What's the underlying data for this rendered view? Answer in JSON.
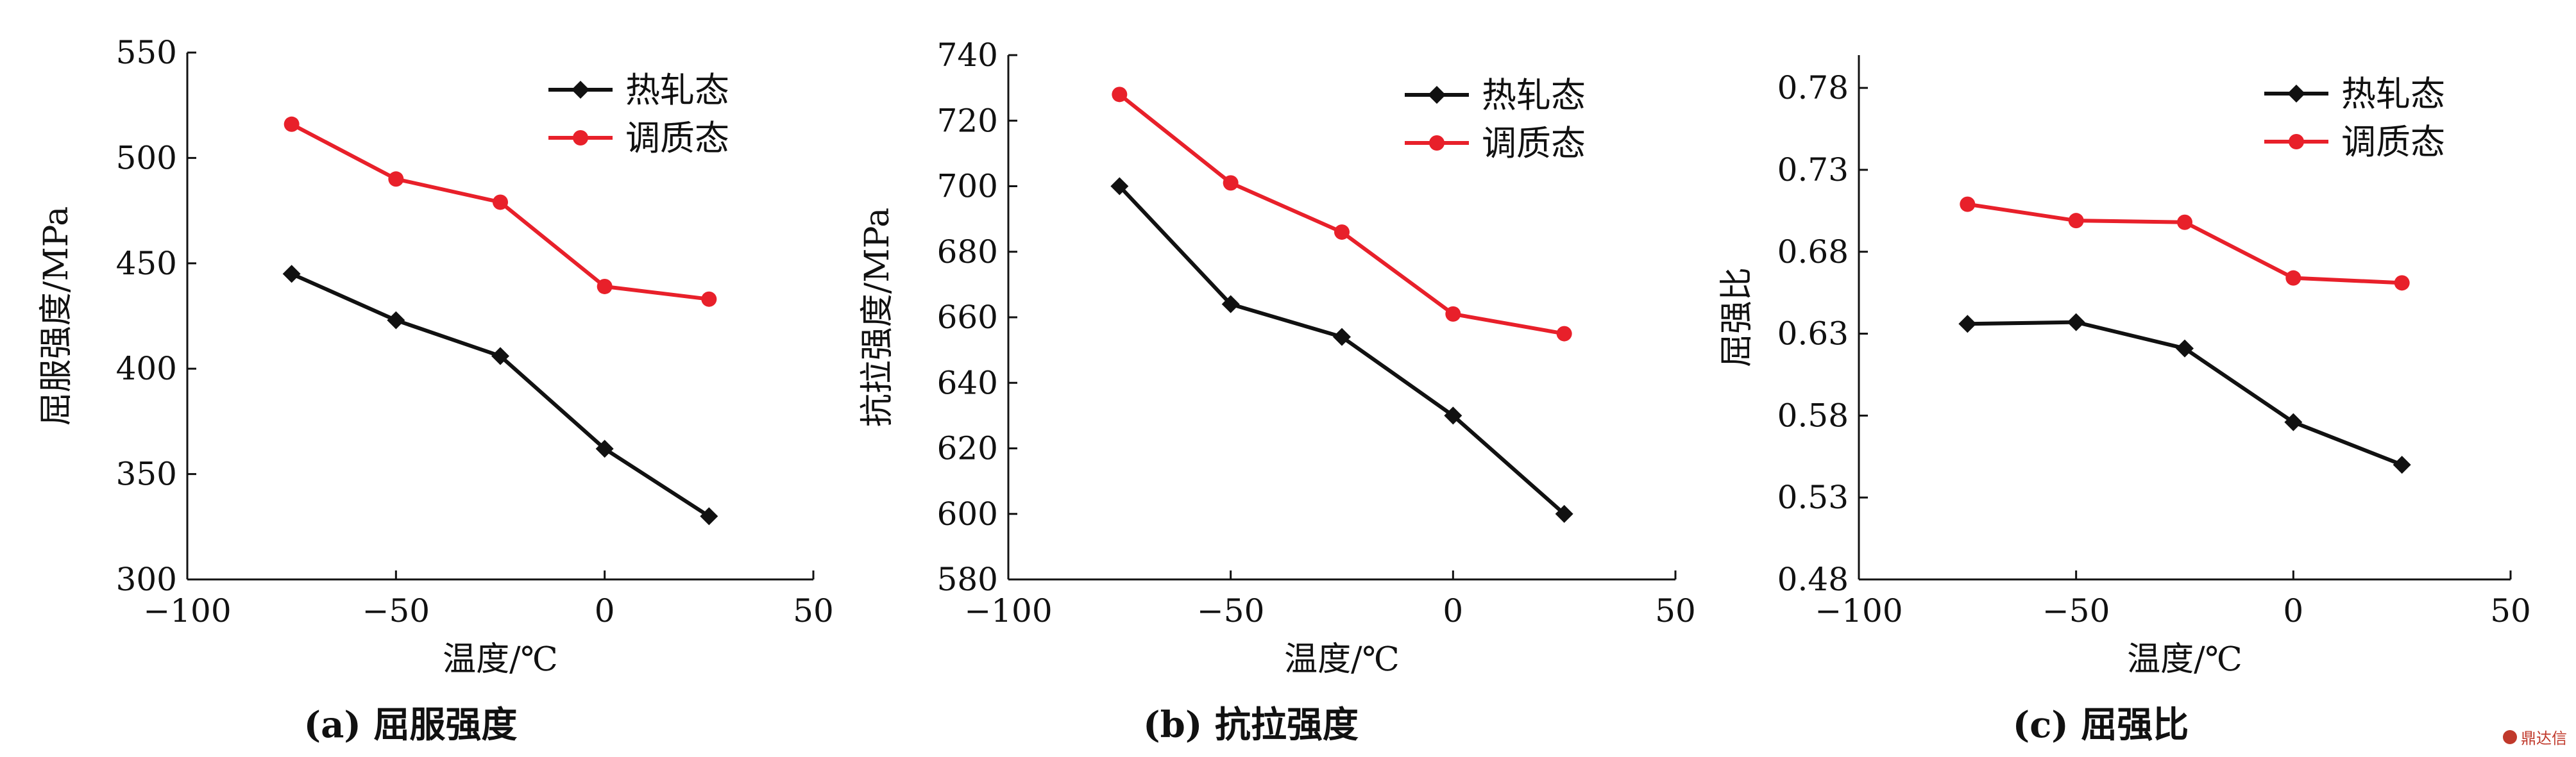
{
  "colors": {
    "hot_rolled": "#111111",
    "tempered": "#e8202a"
  },
  "watermark": {
    "icon": "logo-icon",
    "text": "鼎达信"
  },
  "chart_data": [
    {
      "type": "line",
      "caption": "(a) 屈服强度",
      "xlabel": "温度/℃",
      "ylabel": "屈服强度/MPa",
      "xlim": [
        -100,
        50
      ],
      "ylim": [
        300,
        550
      ],
      "xticks": [
        -100,
        -50,
        0,
        50
      ],
      "xtick_labels": [
        "−100",
        "−50",
        "0",
        "50"
      ],
      "yticks": [
        300,
        350,
        400,
        450,
        500,
        550
      ],
      "ytick_labels": [
        "300",
        "350",
        "400",
        "450",
        "500",
        "550"
      ],
      "grid": false,
      "legend_position": "top-right",
      "x": [
        -75,
        -50,
        -25,
        0,
        25
      ],
      "series": [
        {
          "name": "热轧态",
          "color": "#111111",
          "marker": "diamond",
          "values": [
            445,
            423,
            406,
            362,
            330
          ]
        },
        {
          "name": "调质态",
          "color": "#e8202a",
          "marker": "circle",
          "values": [
            516,
            490,
            479,
            439,
            433
          ]
        }
      ]
    },
    {
      "type": "line",
      "caption": "(b) 抗拉强度",
      "xlabel": "温度/℃",
      "ylabel": "抗拉强度/MPa",
      "xlim": [
        -100,
        50
      ],
      "ylim": [
        580,
        740
      ],
      "xticks": [
        -100,
        -50,
        0,
        50
      ],
      "xtick_labels": [
        "−100",
        "−50",
        "0",
        "50"
      ],
      "yticks": [
        580,
        600,
        620,
        640,
        660,
        680,
        700,
        720,
        740
      ],
      "ytick_labels": [
        "580",
        "600",
        "620",
        "640",
        "660",
        "680",
        "700",
        "720",
        "740"
      ],
      "grid": false,
      "legend_position": "top-right",
      "x": [
        -75,
        -50,
        -25,
        0,
        25
      ],
      "series": [
        {
          "name": "热轧态",
          "color": "#111111",
          "marker": "diamond",
          "values": [
            700,
            664,
            654,
            630,
            600
          ]
        },
        {
          "name": "调质态",
          "color": "#e8202a",
          "marker": "circle",
          "values": [
            728,
            701,
            686,
            661,
            655
          ]
        }
      ]
    },
    {
      "type": "line",
      "caption": "(c) 屈强比",
      "xlabel": "温度/℃",
      "ylabel": "屈强比",
      "xlim": [
        -100,
        50
      ],
      "ylim": [
        0.48,
        0.8
      ],
      "xticks": [
        -100,
        -50,
        0,
        50
      ],
      "xtick_labels": [
        "−100",
        "−50",
        "0",
        "50"
      ],
      "yticks": [
        0.48,
        0.53,
        0.58,
        0.63,
        0.68,
        0.73,
        0.78
      ],
      "ytick_labels": [
        "0.48",
        "0.53",
        "0.58",
        "0.63",
        "0.68",
        "0.73",
        "0.78"
      ],
      "grid": false,
      "legend_position": "top-right",
      "x": [
        -75,
        -50,
        -25,
        0,
        25
      ],
      "series": [
        {
          "name": "热轧态",
          "color": "#111111",
          "marker": "diamond",
          "values": [
            0.636,
            0.637,
            0.621,
            0.576,
            0.55
          ]
        },
        {
          "name": "调质态",
          "color": "#e8202a",
          "marker": "circle",
          "values": [
            0.709,
            0.699,
            0.698,
            0.664,
            0.661
          ]
        }
      ]
    }
  ]
}
